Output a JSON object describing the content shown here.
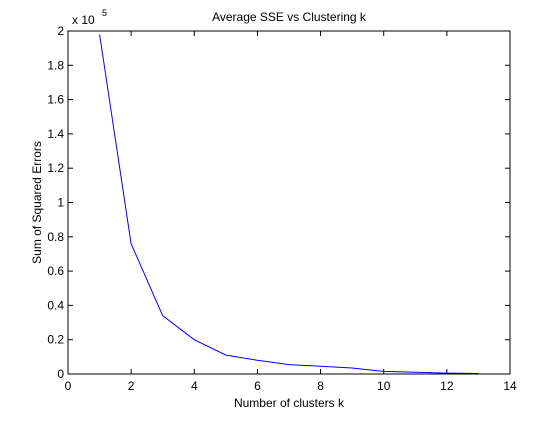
{
  "chart_data": {
    "type": "line",
    "title": "Average SSE vs Clustering k",
    "xlabel": "Number of clusters k",
    "ylabel": "Sum of Squared Errors",
    "y_scale_label": {
      "base": "x 10",
      "exponent": "5"
    },
    "xlim": [
      0,
      14
    ],
    "ylim": [
      0,
      2
    ],
    "x_ticks": [
      0,
      2,
      4,
      6,
      8,
      10,
      12,
      14
    ],
    "y_ticks": [
      0,
      0.2,
      0.4,
      0.6,
      0.8,
      1,
      1.2,
      1.4,
      1.6,
      1.8,
      2
    ],
    "x_tick_labels": [
      "0",
      "2",
      "4",
      "6",
      "8",
      "10",
      "12",
      "14"
    ],
    "y_tick_labels": [
      "0",
      "0.2",
      "0.4",
      "0.6",
      "0.8",
      "1",
      "1.2",
      "1.4",
      "1.6",
      "1.8",
      "2"
    ],
    "grid": false,
    "series": [
      {
        "color": "#0000ff",
        "x": [
          1,
          2,
          3,
          4,
          5,
          6,
          7,
          8,
          9,
          10,
          11,
          12,
          13
        ],
        "y": [
          1.98,
          0.76,
          0.34,
          0.2,
          0.11,
          0.08,
          0.055,
          0.045,
          0.035,
          0.015,
          0.01,
          0.005,
          0.003
        ]
      }
    ]
  }
}
